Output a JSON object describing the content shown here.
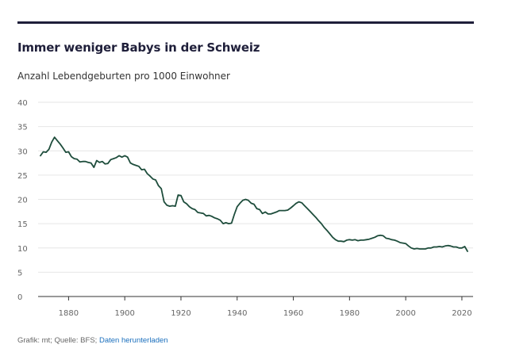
{
  "header": {
    "title": "Immer weniger Babys in der Schweiz",
    "subtitle": "Anzahl Lebendgeburten pro 1000 Einwohner"
  },
  "footer": {
    "credit": "Grafik: mt; Quelle: BFS;",
    "link_label": "Daten herunterladen"
  },
  "colors": {
    "line": "#1e4d3c",
    "grid": "#e6e6e6",
    "axis": "#333333",
    "tick_text": "#666666",
    "title": "#1f1f3a"
  },
  "chart_data": {
    "type": "line",
    "title": "Immer weniger Babys in der Schweiz",
    "subtitle": "Anzahl Lebendgeburten pro 1000 Einwohner",
    "xlabel": "",
    "ylabel": "",
    "xlim": [
      1870,
      2022
    ],
    "ylim": [
      0,
      40
    ],
    "grid": true,
    "x_ticks": [
      1880,
      1900,
      1920,
      1940,
      1960,
      1980,
      2000,
      2020
    ],
    "y_ticks": [
      0,
      5,
      10,
      15,
      20,
      25,
      30,
      35,
      40
    ],
    "series": [
      {
        "name": "Lebendgeburten pro 1000 Einwohner",
        "x": [
          1870,
          1871,
          1872,
          1873,
          1874,
          1875,
          1876,
          1877,
          1878,
          1879,
          1880,
          1881,
          1882,
          1883,
          1884,
          1885,
          1886,
          1887,
          1888,
          1889,
          1890,
          1891,
          1892,
          1893,
          1894,
          1895,
          1896,
          1897,
          1898,
          1899,
          1900,
          1901,
          1902,
          1903,
          1904,
          1905,
          1906,
          1907,
          1908,
          1909,
          1910,
          1911,
          1912,
          1913,
          1914,
          1915,
          1916,
          1917,
          1918,
          1919,
          1920,
          1921,
          1922,
          1923,
          1924,
          1925,
          1926,
          1927,
          1928,
          1929,
          1930,
          1931,
          1932,
          1933,
          1934,
          1935,
          1936,
          1937,
          1938,
          1939,
          1940,
          1941,
          1942,
          1943,
          1944,
          1945,
          1946,
          1947,
          1948,
          1949,
          1950,
          1951,
          1952,
          1953,
          1954,
          1955,
          1956,
          1957,
          1958,
          1959,
          1960,
          1961,
          1962,
          1963,
          1964,
          1965,
          1966,
          1967,
          1968,
          1969,
          1970,
          1971,
          1972,
          1973,
          1974,
          1975,
          1976,
          1977,
          1978,
          1979,
          1980,
          1981,
          1982,
          1983,
          1984,
          1985,
          1986,
          1987,
          1988,
          1989,
          1990,
          1991,
          1992,
          1993,
          1994,
          1995,
          1996,
          1997,
          1998,
          1999,
          2000,
          2001,
          2002,
          2003,
          2004,
          2005,
          2006,
          2007,
          2008,
          2009,
          2010,
          2011,
          2012,
          2013,
          2014,
          2015,
          2016,
          2017,
          2018,
          2019,
          2020,
          2021,
          2022
        ],
        "values": [
          29.0,
          29.8,
          29.7,
          30.3,
          31.8,
          32.8,
          32.1,
          31.4,
          30.6,
          29.7,
          29.8,
          28.8,
          28.4,
          28.3,
          27.7,
          27.8,
          27.8,
          27.6,
          27.5,
          26.6,
          28.0,
          27.6,
          27.8,
          27.3,
          27.4,
          28.2,
          28.4,
          28.6,
          29.0,
          28.7,
          29.0,
          28.7,
          27.5,
          27.2,
          27.0,
          26.8,
          26.1,
          26.2,
          25.3,
          24.8,
          24.2,
          24.0,
          22.8,
          22.2,
          19.5,
          18.8,
          18.6,
          18.7,
          18.6,
          20.9,
          20.8,
          19.5,
          19.1,
          18.5,
          18.1,
          17.9,
          17.3,
          17.2,
          17.1,
          16.6,
          16.7,
          16.5,
          16.2,
          16.0,
          15.7,
          15.0,
          15.2,
          15.0,
          15.1,
          16.9,
          18.5,
          19.2,
          19.8,
          20.0,
          19.8,
          19.2,
          19.0,
          18.1,
          17.9,
          17.1,
          17.4,
          17.0,
          17.0,
          17.2,
          17.4,
          17.7,
          17.7,
          17.7,
          17.8,
          18.2,
          18.7,
          19.2,
          19.5,
          19.3,
          18.7,
          18.1,
          17.5,
          16.9,
          16.3,
          15.6,
          15.0,
          14.2,
          13.6,
          12.9,
          12.2,
          11.7,
          11.4,
          11.4,
          11.3,
          11.6,
          11.7,
          11.6,
          11.7,
          11.5,
          11.6,
          11.6,
          11.7,
          11.8,
          12.0,
          12.2,
          12.5,
          12.6,
          12.5,
          12.0,
          11.9,
          11.7,
          11.6,
          11.4,
          11.1,
          11.0,
          10.9,
          10.4,
          10.0,
          9.8,
          9.9,
          9.8,
          9.8,
          9.8,
          10.0,
          10.0,
          10.2,
          10.2,
          10.3,
          10.2,
          10.4,
          10.5,
          10.4,
          10.2,
          10.2,
          10.0,
          10.0,
          10.3,
          9.3
        ]
      }
    ]
  }
}
